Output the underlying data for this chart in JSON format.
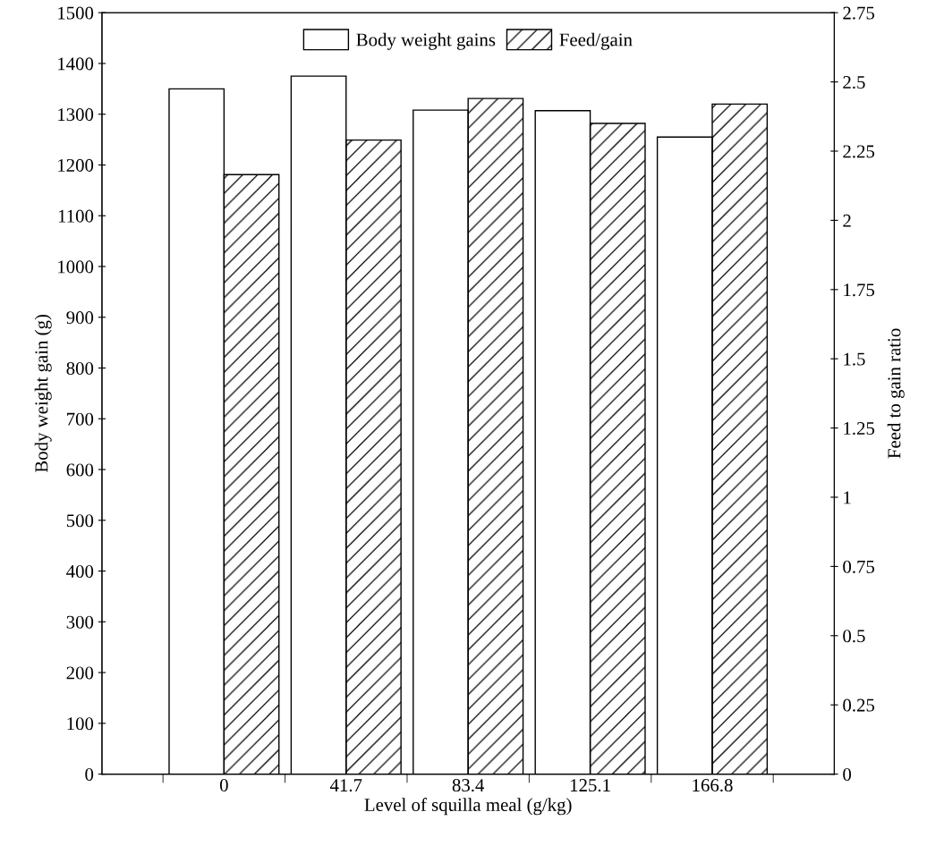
{
  "chart_data": {
    "type": "bar",
    "categories": [
      "0",
      "41.7",
      "83.4",
      "125.1",
      "166.8"
    ],
    "xlabel": "Level of squilla meal (g/kg)",
    "ylabel": "Body weight gain (g)",
    "y2label": "Feed to gain ratio",
    "series": [
      {
        "name": "Body weight gains",
        "color": "#ffffff",
        "values": [
          1350,
          1375,
          1308,
          1307,
          1255
        ]
      },
      {
        "name": "Feed/gain",
        "color": "#000000",
        "axis": "y2",
        "values": [
          2.165,
          2.29,
          2.44,
          2.35,
          2.42
        ]
      }
    ],
    "ylim": [
      0,
      1500
    ],
    "yticks": [
      0,
      100,
      200,
      300,
      400,
      500,
      600,
      700,
      800,
      900,
      1000,
      1100,
      1200,
      1300,
      1400,
      1500
    ],
    "y2lim": [
      0,
      2.75
    ],
    "y2ticks": [
      0,
      0.25,
      0.5,
      0.75,
      1,
      1.25,
      1.5,
      1.75,
      2,
      2.25,
      2.5,
      2.75
    ],
    "grid": false,
    "legend": "top"
  }
}
